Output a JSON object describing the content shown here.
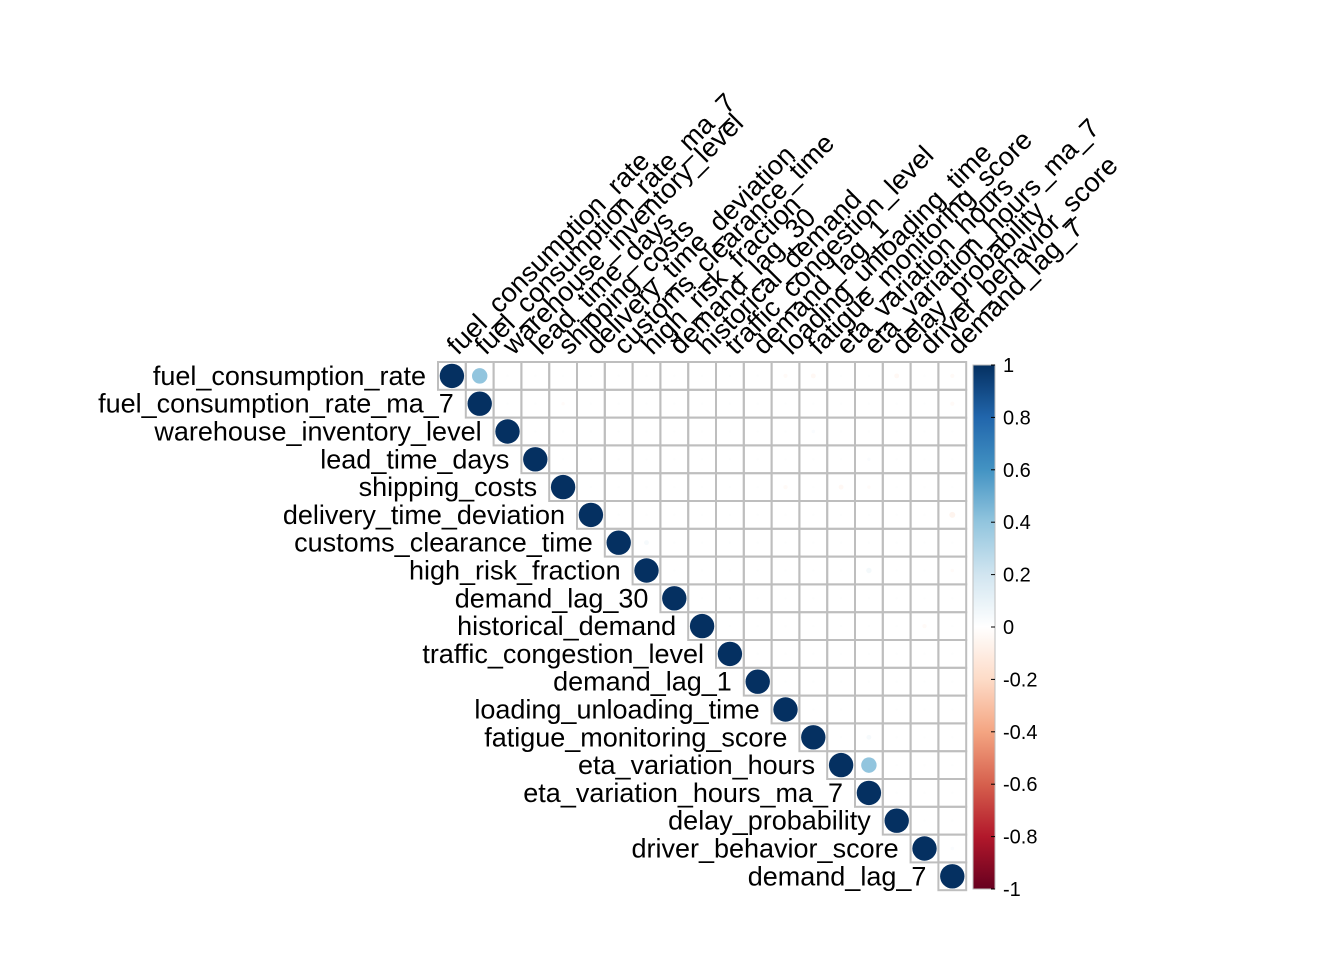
{
  "chart_data": {
    "type": "heatmap",
    "subtype": "correlation-matrix-upper-circles",
    "variables": [
      "fuel_consumption_rate",
      "fuel_consumption_rate_ma_7",
      "warehouse_inventory_level",
      "lead_time_days",
      "shipping_costs",
      "delivery_time_deviation",
      "customs_clearance_time",
      "high_risk_fraction",
      "demand_lag_30",
      "historical_demand",
      "traffic_congestion_level",
      "demand_lag_1",
      "loading_unloading_time",
      "fatigue_monitoring_score",
      "eta_variation_hours",
      "eta_variation_hours_ma_7",
      "delay_probability",
      "driver_behavior_score",
      "demand_lag_7"
    ],
    "correlations": [
      {
        "row": 0,
        "col": 0,
        "value": 1.0
      },
      {
        "row": 0,
        "col": 1,
        "value": 0.4
      },
      {
        "row": 0,
        "col": 12,
        "value": -0.03
      },
      {
        "row": 0,
        "col": 13,
        "value": -0.04
      },
      {
        "row": 0,
        "col": 16,
        "value": -0.04
      },
      {
        "row": 0,
        "col": 18,
        "value": -0.03
      },
      {
        "row": 1,
        "col": 1,
        "value": 1.0
      },
      {
        "row": 1,
        "col": 4,
        "value": -0.02
      },
      {
        "row": 1,
        "col": 18,
        "value": -0.03
      },
      {
        "row": 2,
        "col": 2,
        "value": 1.0
      },
      {
        "row": 2,
        "col": 13,
        "value": 0.02
      },
      {
        "row": 3,
        "col": 3,
        "value": 1.0
      },
      {
        "row": 3,
        "col": 15,
        "value": 0.02
      },
      {
        "row": 4,
        "col": 4,
        "value": 1.0
      },
      {
        "row": 4,
        "col": 12,
        "value": -0.03
      },
      {
        "row": 4,
        "col": 14,
        "value": -0.04
      },
      {
        "row": 4,
        "col": 15,
        "value": -0.02
      },
      {
        "row": 5,
        "col": 5,
        "value": 1.0
      },
      {
        "row": 5,
        "col": 18,
        "value": -0.06
      },
      {
        "row": 6,
        "col": 6,
        "value": 1.0
      },
      {
        "row": 6,
        "col": 7,
        "value": 0.04
      },
      {
        "row": 7,
        "col": 7,
        "value": 1.0
      },
      {
        "row": 7,
        "col": 15,
        "value": 0.05
      },
      {
        "row": 7,
        "col": 18,
        "value": -0.02
      },
      {
        "row": 8,
        "col": 8,
        "value": 1.0
      },
      {
        "row": 9,
        "col": 9,
        "value": 1.0
      },
      {
        "row": 9,
        "col": 17,
        "value": -0.03
      },
      {
        "row": 10,
        "col": 10,
        "value": 1.0
      },
      {
        "row": 11,
        "col": 11,
        "value": 1.0
      },
      {
        "row": 12,
        "col": 12,
        "value": 1.0
      },
      {
        "row": 13,
        "col": 13,
        "value": 1.0
      },
      {
        "row": 13,
        "col": 15,
        "value": 0.04
      },
      {
        "row": 14,
        "col": 14,
        "value": 1.0
      },
      {
        "row": 14,
        "col": 15,
        "value": 0.4
      },
      {
        "row": 15,
        "col": 15,
        "value": 1.0
      },
      {
        "row": 16,
        "col": 16,
        "value": 1.0
      },
      {
        "row": 17,
        "col": 17,
        "value": 1.0
      },
      {
        "row": 17,
        "col": 18,
        "value": 0.02
      },
      {
        "row": 18,
        "col": 18,
        "value": 1.0
      }
    ],
    "other_cells_value": 0.01,
    "colorbar": {
      "min": -1,
      "max": 1,
      "ticks": [
        "1",
        "0.8",
        "0.6",
        "0.4",
        "0.2",
        "0",
        "-0.2",
        "-0.4",
        "-0.6",
        "-0.8",
        "-1"
      ],
      "colors": [
        "#67001F",
        "#B2182B",
        "#D6604D",
        "#F4A582",
        "#FDDBC7",
        "#FFFFFF",
        "#D1E5F0",
        "#92C5DE",
        "#4393C3",
        "#2166AC",
        "#053061"
      ]
    },
    "grid": true,
    "legend_position": "right"
  }
}
